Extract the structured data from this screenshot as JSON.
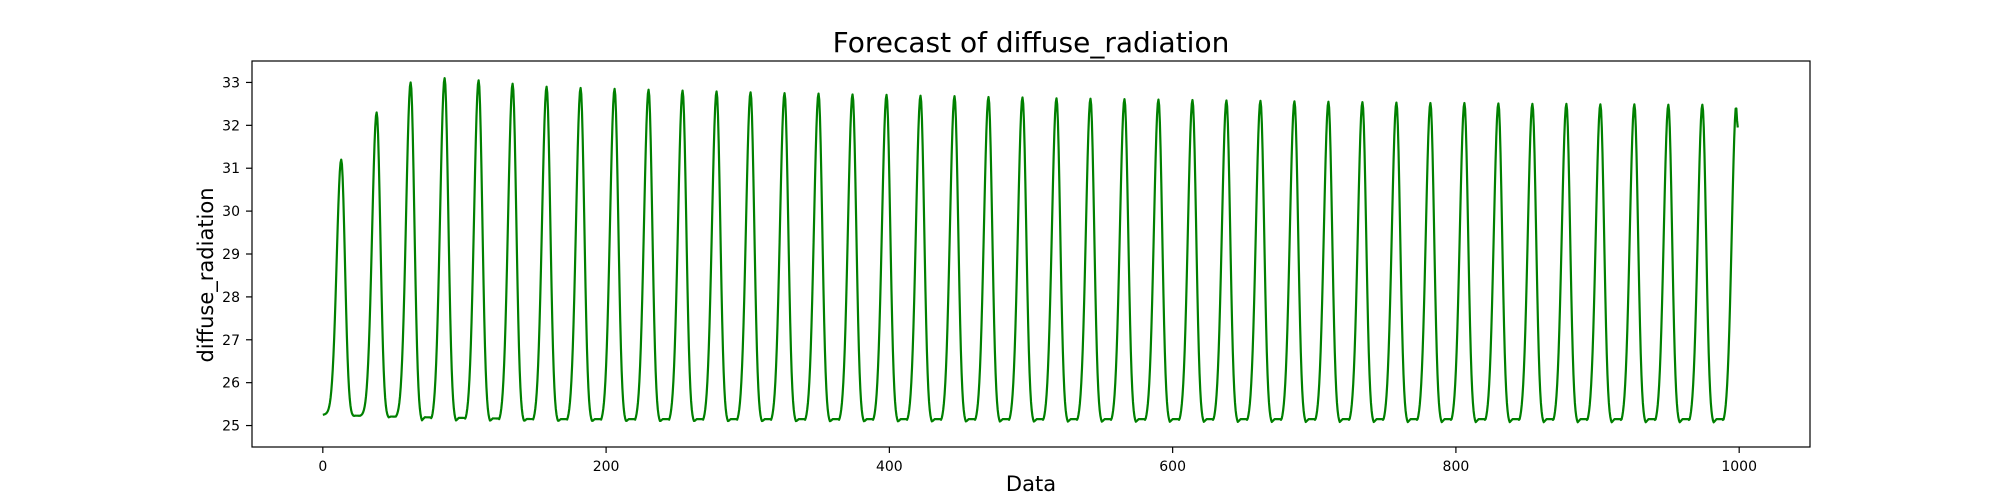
{
  "chart_data": {
    "type": "line",
    "title": "Forecast of diffuse_radiation",
    "xlabel": "Data",
    "ylabel": "diffuse_radiation",
    "xlim": [
      -50,
      1050
    ],
    "ylim": [
      24.5,
      33.5
    ],
    "x_ticks": [
      0,
      200,
      400,
      600,
      800,
      1000
    ],
    "y_ticks": [
      25,
      26,
      27,
      28,
      29,
      30,
      31,
      32,
      33
    ],
    "grid": false,
    "legend": "none",
    "series": [
      {
        "color": "#008000",
        "period": 24,
        "x_start": 0,
        "x_end": 999,
        "baseline": [
          [
            0,
            25.25
          ],
          [
            12,
            25.3
          ],
          [
            20,
            25.2
          ],
          [
            36,
            25.25
          ],
          [
            44,
            25.15
          ],
          [
            60,
            25.2
          ],
          [
            68,
            25.05
          ],
          [
            1000,
            25.0
          ]
        ],
        "plateau": [
          [
            0,
            25.25
          ],
          [
            60,
            25.2
          ],
          [
            150,
            25.15
          ],
          [
            1000,
            25.15
          ]
        ],
        "peaks": [
          [
            13,
            31.2
          ],
          [
            38,
            32.3
          ],
          [
            62,
            33.0
          ],
          [
            86,
            33.1
          ],
          [
            110,
            33.05
          ],
          [
            134,
            32.97
          ],
          [
            158,
            32.9
          ],
          [
            182,
            32.87
          ],
          [
            206,
            32.85
          ],
          [
            230,
            32.83
          ],
          [
            254,
            32.81
          ],
          [
            278,
            32.79
          ],
          [
            302,
            32.77
          ],
          [
            326,
            32.75
          ],
          [
            350,
            32.74
          ],
          [
            374,
            32.72
          ],
          [
            398,
            32.71
          ],
          [
            422,
            32.69
          ],
          [
            446,
            32.68
          ],
          [
            470,
            32.66
          ],
          [
            494,
            32.65
          ],
          [
            518,
            32.63
          ],
          [
            542,
            32.62
          ],
          [
            566,
            32.61
          ],
          [
            590,
            32.6
          ],
          [
            614,
            32.59
          ],
          [
            638,
            32.58
          ],
          [
            662,
            32.57
          ],
          [
            686,
            32.56
          ],
          [
            710,
            32.55
          ],
          [
            734,
            32.54
          ],
          [
            758,
            32.53
          ],
          [
            782,
            32.52
          ],
          [
            806,
            32.52
          ],
          [
            830,
            32.51
          ],
          [
            854,
            32.5
          ],
          [
            878,
            32.5
          ],
          [
            902,
            32.49
          ],
          [
            926,
            32.49
          ],
          [
            950,
            32.48
          ],
          [
            974,
            32.48
          ],
          [
            998,
            32.48
          ]
        ],
        "end_value": 31.95
      }
    ]
  }
}
